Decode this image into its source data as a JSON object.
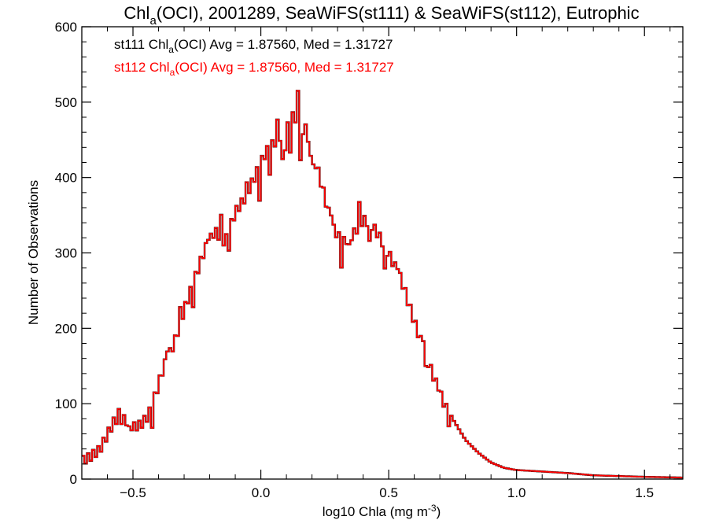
{
  "chart_data": {
    "type": "histogram",
    "title": {
      "pre": "Chl",
      "sub": "a",
      "post": "(OCI), 2001289, SeaWiFS(st111) & SeaWiFS(st112), Eutrophic"
    },
    "xlabel": {
      "pre": "log10 Chla (mg m",
      "sup": "-3",
      "post": ")"
    },
    "ylabel": "Number of Observations",
    "xlim": [
      -0.7,
      1.65
    ],
    "ylim": [
      0,
      600
    ],
    "xticks": [
      -0.5,
      0.0,
      0.5,
      1.0,
      1.5
    ],
    "xtick_labels": [
      "−0.5",
      "0.0",
      "0.5",
      "1.0",
      "1.5"
    ],
    "yticks": [
      0,
      100,
      200,
      300,
      400,
      500,
      600
    ],
    "ytick_labels": [
      "0",
      "100",
      "200",
      "300",
      "400",
      "500",
      "600"
    ],
    "legend": [
      {
        "pre": "st111 Chl",
        "sub": "a",
        "post": "(OCI) Avg = 1.87560, Med = 1.31727",
        "color": "#000000"
      },
      {
        "pre": "st112 Chl",
        "sub": "a",
        "post": "(OCI) Avg = 1.87560, Med = 1.31727",
        "color": "#ff0000"
      }
    ],
    "colors": {
      "st111": "#000000",
      "st112": "#ff0000"
    },
    "series": [
      {
        "name": "st111",
        "color": "#000000"
      },
      {
        "name": "st112",
        "color": "#ff0000"
      }
    ],
    "bin_width": 0.01,
    "control_points": [
      [
        -0.7,
        30
      ],
      [
        -0.67,
        35
      ],
      [
        -0.63,
        45
      ],
      [
        -0.6,
        65
      ],
      [
        -0.57,
        85
      ],
      [
        -0.53,
        85
      ],
      [
        -0.5,
        75
      ],
      [
        -0.47,
        78
      ],
      [
        -0.44,
        90
      ],
      [
        -0.41,
        120
      ],
      [
        -0.38,
        155
      ],
      [
        -0.34,
        185
      ],
      [
        -0.3,
        230
      ],
      [
        -0.26,
        270
      ],
      [
        -0.22,
        310
      ],
      [
        -0.18,
        335
      ],
      [
        -0.14,
        320
      ],
      [
        -0.1,
        360
      ],
      [
        -0.06,
        380
      ],
      [
        -0.02,
        410
      ],
      [
        0.02,
        440
      ],
      [
        0.06,
        455
      ],
      [
        0.1,
        470
      ],
      [
        0.13,
        490
      ],
      [
        0.16,
        460
      ],
      [
        0.19,
        445
      ],
      [
        0.22,
        420
      ],
      [
        0.25,
        380
      ],
      [
        0.28,
        340
      ],
      [
        0.32,
        320
      ],
      [
        0.36,
        330
      ],
      [
        0.4,
        350
      ],
      [
        0.43,
        345
      ],
      [
        0.46,
        330
      ],
      [
        0.5,
        305
      ],
      [
        0.55,
        270
      ],
      [
        0.6,
        215
      ],
      [
        0.65,
        165
      ],
      [
        0.7,
        120
      ],
      [
        0.75,
        80
      ],
      [
        0.8,
        52
      ],
      [
        0.85,
        35
      ],
      [
        0.9,
        22
      ],
      [
        0.95,
        15
      ],
      [
        1.0,
        12
      ],
      [
        1.1,
        10
      ],
      [
        1.2,
        8
      ],
      [
        1.3,
        5
      ],
      [
        1.4,
        4
      ],
      [
        1.5,
        3
      ],
      [
        1.65,
        2
      ]
    ],
    "spikes": [
      [
        -0.56,
        8
      ],
      [
        -0.52,
        -10
      ],
      [
        -0.43,
        -25
      ],
      [
        -0.37,
        15
      ],
      [
        -0.32,
        15
      ],
      [
        -0.27,
        -25
      ],
      [
        -0.21,
        10
      ],
      [
        -0.16,
        25
      ],
      [
        -0.13,
        -20
      ],
      [
        -0.06,
        10
      ],
      [
        -0.01,
        -40
      ],
      [
        0.03,
        -30
      ],
      [
        0.06,
        20
      ],
      [
        0.08,
        -40
      ],
      [
        0.09,
        -20
      ],
      [
        0.11,
        -35
      ],
      [
        0.14,
        40
      ],
      [
        0.15,
        -30
      ],
      [
        0.17,
        30
      ],
      [
        0.2,
        -15
      ],
      [
        0.27,
        15
      ],
      [
        0.31,
        -30
      ],
      [
        0.34,
        -15
      ],
      [
        0.38,
        25
      ],
      [
        0.42,
        -30
      ],
      [
        0.48,
        -35
      ],
      [
        0.53,
        10
      ],
      [
        0.63,
        15
      ],
      [
        0.64,
        -20
      ],
      [
        0.69,
        5
      ],
      [
        0.73,
        -10
      ]
    ]
  }
}
